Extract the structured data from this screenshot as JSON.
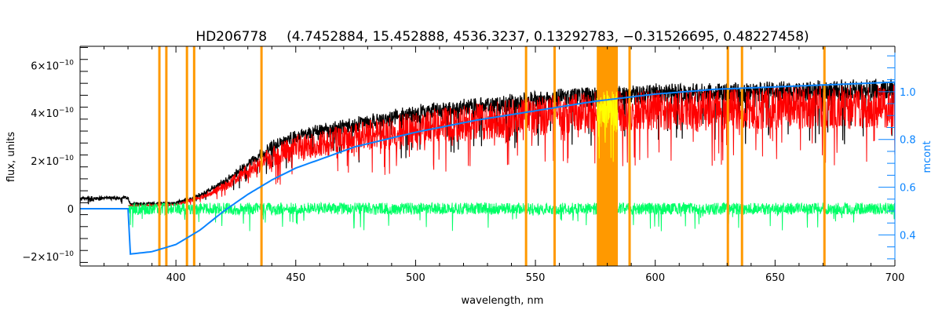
{
  "chart_data": {
    "type": "line",
    "title_object": "HD206778",
    "title_params": "(4.7452884, 15.452888, 4536.3237, 0.13292783, −0.31526695, 0.48227458)",
    "xlabel": "wavelength, nm",
    "ylabel": "flux, units",
    "y2label": "mcont",
    "xlim": [
      360,
      700
    ],
    "ylim": [
      -2.4e-10,
      6.8e-10
    ],
    "y2lim": [
      0.27,
      1.19
    ],
    "x_ticks": [
      400,
      450,
      500,
      550,
      600,
      650,
      700
    ],
    "y_ticks": [
      {
        "value": -2e-10,
        "label": "−2×10",
        "exp": "−10"
      },
      {
        "value": 0,
        "label": "0",
        "exp": ""
      },
      {
        "value": 2e-10,
        "label": "2×10",
        "exp": "−10"
      },
      {
        "value": 4e-10,
        "label": "4×10",
        "exp": "−10"
      },
      {
        "value": 6e-10,
        "label": "6×10",
        "exp": "−10"
      }
    ],
    "y2_ticks": [
      0.4,
      0.6,
      0.8,
      1.0
    ],
    "y2_tick_labels": [
      "0.4",
      "0.6",
      "0.8",
      "1.0"
    ],
    "colors": {
      "observed": "#000000",
      "model": "#ff0000",
      "residual": "#00ff66",
      "mcont": "#0a84ff",
      "mask": "#ff9900",
      "masked_model": "#ffff00",
      "axis2": "#0a84ff"
    },
    "series": [
      {
        "name": "observed flux",
        "axis": "left",
        "unit": "1e-10",
        "x": [
          360,
          380,
          381,
          400,
          410,
          420,
          430,
          440,
          450,
          475,
          500,
          525,
          550,
          575,
          600,
          650,
          700
        ],
        "values": [
          0.45,
          0.5,
          0.2,
          0.25,
          0.6,
          1.2,
          2.0,
          2.8,
          3.3,
          3.8,
          4.3,
          4.6,
          4.9,
          5.1,
          5.2,
          5.3,
          5.4
        ]
      },
      {
        "name": "model flux",
        "axis": "left",
        "unit": "1e-10",
        "x": [
          380,
          400,
          410,
          420,
          430,
          440,
          450,
          475,
          500,
          525,
          550,
          575,
          600,
          650,
          700
        ],
        "values": [
          0.15,
          0.2,
          0.55,
          1.1,
          1.9,
          2.6,
          3.1,
          3.6,
          4.1,
          4.4,
          4.7,
          4.9,
          5.0,
          5.1,
          5.2
        ]
      },
      {
        "name": "residual",
        "axis": "left",
        "unit": "1e-10",
        "x": [
          380,
          700
        ],
        "values": [
          0,
          0
        ],
        "scatter": 0.25
      },
      {
        "name": "mcont",
        "axis": "right",
        "x": [
          360,
          380,
          381,
          390,
          400,
          410,
          420,
          430,
          440,
          450,
          475,
          500,
          525,
          550,
          575,
          600,
          625,
          650,
          675,
          700
        ],
        "values": [
          0.51,
          0.51,
          0.32,
          0.33,
          0.36,
          0.42,
          0.5,
          0.57,
          0.63,
          0.68,
          0.77,
          0.83,
          0.88,
          0.92,
          0.96,
          0.99,
          1.01,
          1.02,
          1.03,
          1.04
        ]
      }
    ],
    "masked_lines": [
      393.1,
      396.0,
      404.6,
      407.6,
      435.7,
      546.1,
      558.0,
      589.3,
      630.3,
      636.2,
      670.6
    ],
    "masked_bands": [
      [
        575.6,
        584.4
      ]
    ]
  }
}
